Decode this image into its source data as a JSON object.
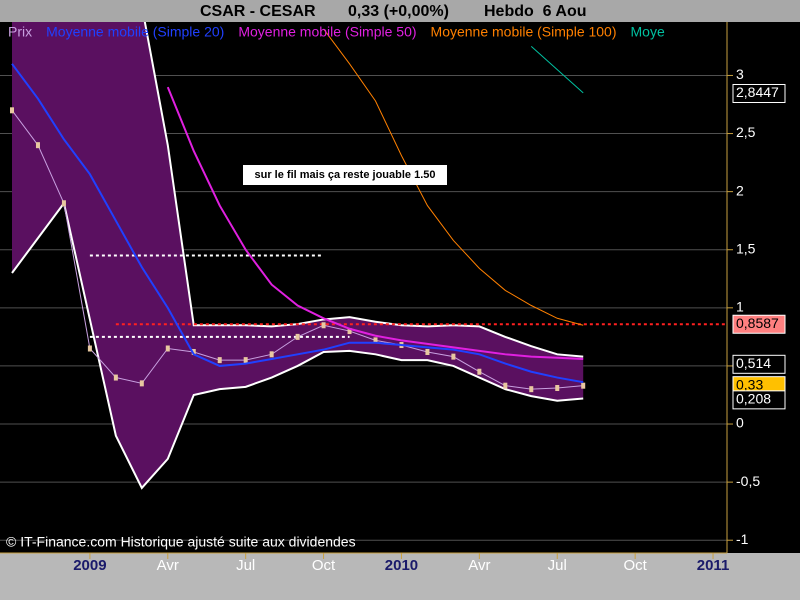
{
  "chart_data": {
    "type": "line",
    "title": {
      "name": "CSAR - CESAR",
      "quote": "0,33 (+0,00%)",
      "period": "Hebdo  6 Aou"
    },
    "x": [
      "2008-10",
      "2008-11",
      "2008-12",
      "2009-01",
      "2009-02",
      "2009-03",
      "2009-04",
      "2009-05",
      "2009-06",
      "2009-07",
      "2009-08",
      "2009-09",
      "2009-10",
      "2009-11",
      "2009-12",
      "2010-01",
      "2010-02",
      "2010-03",
      "2010-04",
      "2010-05",
      "2010-06",
      "2010-07",
      "2010-08"
    ],
    "series": [
      {
        "name": "Prix",
        "color": "#c8a0e0",
        "values": [
          2.7,
          2.4,
          1.9,
          0.65,
          0.4,
          0.35,
          0.65,
          0.62,
          0.55,
          0.55,
          0.6,
          0.75,
          0.85,
          0.8,
          0.72,
          0.68,
          0.62,
          0.58,
          0.45,
          0.33,
          0.3,
          0.31,
          0.33
        ]
      },
      {
        "name": "Moyenne mobile (Simple 20)",
        "color": "#2040ff",
        "values": [
          3.1,
          2.8,
          2.45,
          2.15,
          1.75,
          1.35,
          1.0,
          0.6,
          0.5,
          0.52,
          0.56,
          0.6,
          0.64,
          0.7,
          0.7,
          0.68,
          0.66,
          0.64,
          0.6,
          0.52,
          0.45,
          0.4,
          0.36
        ]
      },
      {
        "name": "Moyenne mobile (Simple 50)",
        "color": "#e020e0",
        "values": [
          null,
          null,
          null,
          null,
          null,
          null,
          2.9,
          2.35,
          1.88,
          1.5,
          1.2,
          1.02,
          0.91,
          0.82,
          0.76,
          0.72,
          0.69,
          0.66,
          0.63,
          0.6,
          0.58,
          0.57,
          0.56
        ]
      },
      {
        "name": "Moyenne mobile (Simple 100)",
        "color": "#ff8000",
        "values": [
          null,
          null,
          null,
          null,
          null,
          null,
          null,
          null,
          null,
          null,
          null,
          null,
          3.4,
          3.1,
          2.78,
          2.31,
          1.88,
          1.58,
          1.34,
          1.15,
          1.02,
          0.91,
          0.85
        ]
      },
      {
        "name": "Moye",
        "color": "#00c0a0",
        "values": [
          null,
          null,
          null,
          null,
          null,
          null,
          null,
          null,
          null,
          null,
          null,
          null,
          null,
          null,
          null,
          null,
          null,
          null,
          null,
          null,
          3.25,
          3.05,
          2.85
        ]
      }
    ],
    "bands": {
      "color": "#5a1060",
      "line_color": "#ffffff",
      "upper": [
        4.2,
        4.2,
        4.1,
        3.9,
        3.7,
        3.6,
        2.4,
        0.85,
        0.85,
        0.85,
        0.84,
        0.86,
        0.9,
        0.92,
        0.88,
        0.85,
        0.84,
        0.85,
        0.84,
        0.75,
        0.67,
        0.6,
        0.58
      ],
      "lower": [
        1.3,
        1.6,
        1.9,
        0.9,
        -0.1,
        -0.55,
        -0.3,
        0.25,
        0.3,
        0.32,
        0.4,
        0.5,
        0.62,
        0.63,
        0.6,
        0.55,
        0.55,
        0.5,
        0.4,
        0.3,
        0.24,
        0.2,
        0.22
      ]
    },
    "xlim": [
      "2008-10",
      "2011-02"
    ],
    "xticks": [
      {
        "value": "2009-01",
        "label": "2009"
      },
      {
        "value": "2009-04",
        "label": "Avr"
      },
      {
        "value": "2009-07",
        "label": "Jul"
      },
      {
        "value": "2009-10",
        "label": "Oct"
      },
      {
        "value": "2010-01",
        "label": "2010"
      },
      {
        "value": "2010-04",
        "label": "Avr"
      },
      {
        "value": "2010-07",
        "label": "Jul"
      },
      {
        "value": "2010-10",
        "label": "Oct"
      },
      {
        "value": "2011-01",
        "label": "2011"
      }
    ],
    "ylim": [
      -1.11,
      3.46
    ],
    "yticks": [
      {
        "value": 3,
        "label": "3"
      },
      {
        "value": 2.5,
        "label": "2,5"
      },
      {
        "value": 2,
        "label": "2"
      },
      {
        "value": 1.5,
        "label": "1,5"
      },
      {
        "value": 1,
        "label": "1"
      },
      {
        "value": 0.5,
        "label": "0,5"
      },
      {
        "value": 0,
        "label": "0"
      },
      {
        "value": -0.5,
        "label": "-0,5"
      },
      {
        "value": -1,
        "label": "-1"
      }
    ],
    "grid": true,
    "levels": [
      {
        "value": 1.45,
        "from": "2009-01",
        "to": "2009-10",
        "color": "#ffffff"
      },
      {
        "value": 0.75,
        "from": "2009-01",
        "to": "2009-11",
        "color": "#ffffff"
      },
      {
        "value": 0.8587,
        "from": "2009-02",
        "to": "2011-02",
        "color": "#ff2020"
      }
    ],
    "price_labels": [
      {
        "value": 2.8447,
        "label": "2,8447",
        "color": "#000000",
        "text_color": "#ffffff"
      },
      {
        "value": 0.8587,
        "label": "0,8587",
        "color": "#ff8080",
        "text_color": "#000000"
      },
      {
        "value": 0.514,
        "label": "0,514",
        "color": "#000000",
        "text_color": "#ffffff"
      },
      {
        "value": 0.33,
        "label": "0,33",
        "color": "#ffc000",
        "text_color": "#000000"
      },
      {
        "value": 0.208,
        "label": "0,208",
        "color": "#000000",
        "text_color": "#ffffff"
      }
    ],
    "annotation": "sur le fil mais ça reste jouable 1.50",
    "footer": "© IT-Finance.com Historique ajusté suite aux dividendes"
  }
}
